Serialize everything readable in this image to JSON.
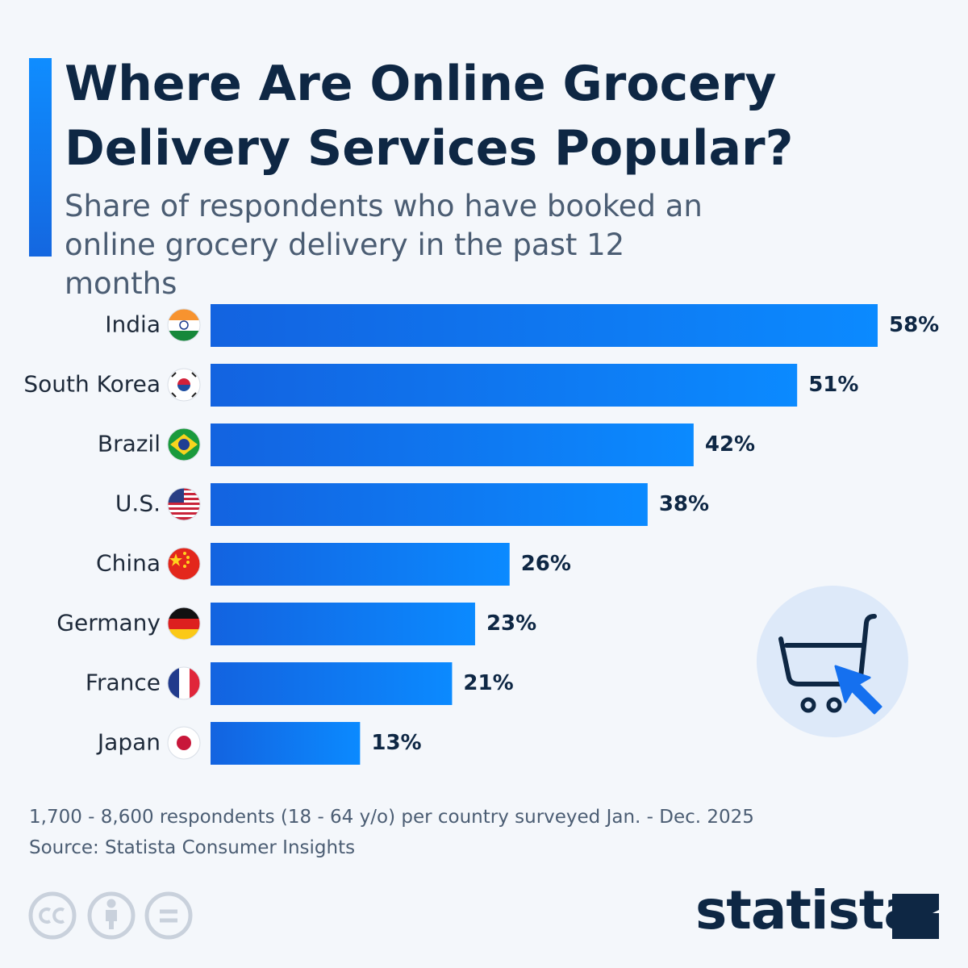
{
  "chart_data": {
    "type": "bar",
    "orientation": "horizontal",
    "title": "Where Are Online Grocery Delivery Services Popular?",
    "subtitle": "Share of respondents who have booked an online grocery delivery in the past 12 months",
    "categories": [
      "India",
      "South Korea",
      "Brazil",
      "U.S.",
      "China",
      "Germany",
      "France",
      "Japan"
    ],
    "values": [
      58,
      51,
      42,
      38,
      26,
      23,
      21,
      13
    ],
    "value_labels": [
      "58%",
      "51%",
      "42%",
      "38%",
      "26%",
      "23%",
      "21%",
      "13%"
    ],
    "color": "#0b8aff",
    "footnote": "1,700 - 8,600 respondents (18 - 64 y/o) per country surveyed Jan. - Dec. 2025",
    "source": "Source: Statista Consumer Insights",
    "brand": "statista"
  }
}
